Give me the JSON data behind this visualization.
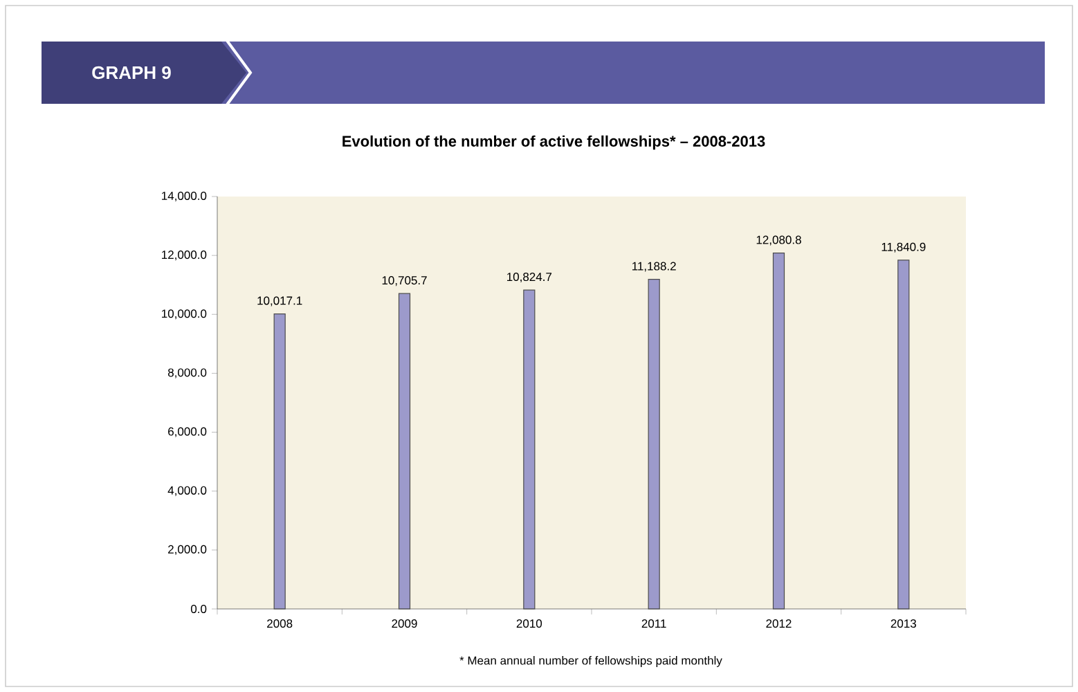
{
  "chart_data": {
    "type": "bar",
    "title": "Evolution of the number of active fellowships* – 2008-2013",
    "subtitle": "GRAPH 9",
    "categories": [
      "2008",
      "2009",
      "2010",
      "2011",
      "2012",
      "2013"
    ],
    "values": [
      10017.1,
      10705.7,
      10824.7,
      11188.2,
      12080.8,
      11840.9
    ],
    "value_labels": [
      "10,017.1",
      "10,705.7",
      "10,824.7",
      "11,188.2",
      "12,080.8",
      "11,840.9"
    ],
    "color": "#9c9acb",
    "ylim": [
      0,
      14000
    ],
    "yticks": [
      {
        "value": 0,
        "label": "0.0"
      },
      {
        "value": 2000,
        "label": "2,000.0"
      },
      {
        "value": 4000,
        "label": "4,000.0"
      },
      {
        "value": 6000,
        "label": "6,000.0"
      },
      {
        "value": 8000,
        "label": "8,000.0"
      },
      {
        "value": 10000,
        "label": "10,000.0"
      },
      {
        "value": 12000,
        "label": "12,000.0"
      },
      {
        "value": 14000,
        "label": "14,000.0"
      }
    ],
    "grid": false,
    "annotations": [
      "* Mean annual number of fellowships paid monthly"
    ]
  }
}
